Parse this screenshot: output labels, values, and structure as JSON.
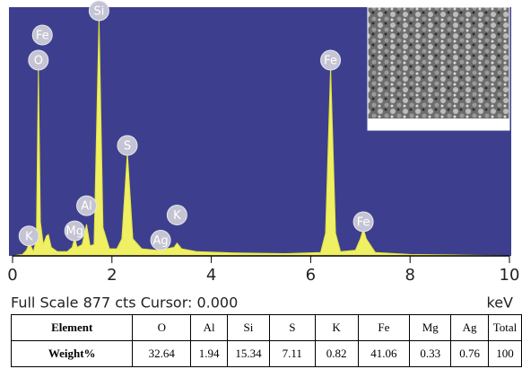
{
  "chart_data": {
    "type": "area",
    "x": [
      0.0,
      0.2,
      0.28,
      0.34,
      0.42,
      0.48,
      0.52,
      0.56,
      0.62,
      0.68,
      0.72,
      0.78,
      0.9,
      1.1,
      1.2,
      1.25,
      1.3,
      1.4,
      1.49,
      1.56,
      1.64,
      1.74,
      1.82,
      1.95,
      2.1,
      2.2,
      2.31,
      2.42,
      2.6,
      2.9,
      2.98,
      3.1,
      3.25,
      3.31,
      3.4,
      3.7,
      4.5,
      5.5,
      6.2,
      6.3,
      6.4,
      6.5,
      6.6,
      6.9,
      7.0,
      7.06,
      7.12,
      7.3,
      8.0,
      9.0,
      10.0
    ],
    "values": [
      0,
      5,
      20,
      45,
      15,
      60,
      665,
      120,
      40,
      70,
      75,
      30,
      15,
      15,
      30,
      63,
      30,
      40,
      111,
      35,
      40,
      839,
      100,
      25,
      25,
      60,
      364,
      60,
      25,
      20,
      30,
      25,
      30,
      45,
      25,
      15,
      10,
      8,
      12,
      80,
      665,
      80,
      15,
      20,
      60,
      95,
      60,
      12,
      5,
      3,
      0
    ],
    "color": "#f0f064",
    "background": "#3d3f8e",
    "xlim": [
      0,
      10
    ],
    "xticks": [
      0,
      2,
      4,
      6,
      8,
      10
    ],
    "ylim": [
      0,
      877
    ],
    "peak_labels": [
      {
        "label": "K",
        "x": 0.33
      },
      {
        "label": "O",
        "x": 0.52
      },
      {
        "label": "Fe",
        "x": 0.6
      },
      {
        "label": "Mg",
        "x": 1.25
      },
      {
        "label": "Al",
        "x": 1.49
      },
      {
        "label": "Si",
        "x": 1.74
      },
      {
        "label": "S",
        "x": 2.31
      },
      {
        "label": "Ag",
        "x": 2.98
      },
      {
        "label": "K",
        "x": 3.31
      },
      {
        "label": "Fe",
        "x": 6.4
      },
      {
        "label": "Fe",
        "x": 7.06
      }
    ],
    "status": "Full Scale 877 cts Cursor: 0.000",
    "x_unit": "keV"
  },
  "table": {
    "rows": [
      [
        "Element",
        "O",
        "Al",
        "Si",
        "S",
        "K",
        "Fe",
        "Mg",
        "Ag",
        "Total"
      ],
      [
        "Weight%",
        32.64,
        1.94,
        15.34,
        7.11,
        0.82,
        41.06,
        0.33,
        0.76,
        100
      ]
    ]
  }
}
